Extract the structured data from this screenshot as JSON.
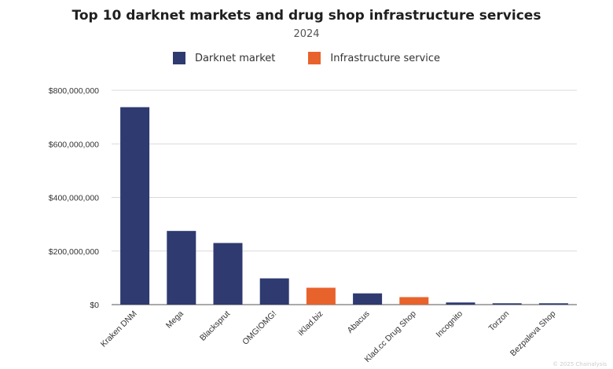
{
  "colors": {
    "darknet": "#2e3a70",
    "infrastructure": "#e8622c",
    "grid": "#d9d9d9",
    "axis": "#555555"
  },
  "footer": {
    "copyright": "© 2025 Chainalysis"
  },
  "chart_data": {
    "type": "bar",
    "title": "Top 10 darknet markets and drug shop infrastructure services",
    "subtitle": "2024",
    "legend": [
      {
        "label": "Darknet market",
        "color": "#2e3a70"
      },
      {
        "label": "Infrastructure service",
        "color": "#e8622c"
      }
    ],
    "legend_position": "top-center",
    "grid": true,
    "ylim": [
      0,
      800000000
    ],
    "yticks": [
      0,
      200000000,
      400000000,
      600000000,
      800000000
    ],
    "ytick_labels": [
      "$0",
      "$200,000,000",
      "$400,000,000",
      "$600,000,000",
      "$800,000,000"
    ],
    "categories": [
      "Kraken DNM",
      "Mega",
      "Blacksprut",
      "OMG!OMG!",
      "iKlad.biz",
      "Abacus",
      "Klad.cc Drug Shop",
      "Incognito",
      "Torzon",
      "Bezpaleva Shop"
    ],
    "values": [
      737000000,
      275000000,
      230000000,
      98000000,
      63000000,
      42000000,
      28000000,
      8000000,
      5000000,
      5000000
    ],
    "category_types": [
      "Darknet market",
      "Darknet market",
      "Darknet market",
      "Darknet market",
      "Infrastructure service",
      "Darknet market",
      "Infrastructure service",
      "Darknet market",
      "Darknet market",
      "Darknet market"
    ]
  }
}
